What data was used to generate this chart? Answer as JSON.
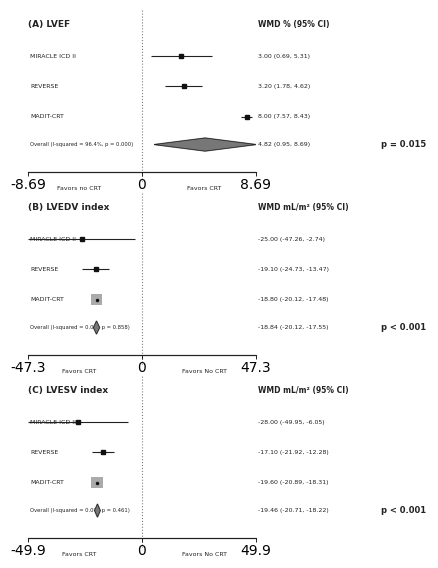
{
  "panels": [
    {
      "title": "(A) LVEF",
      "wmd_label": "WMD % (95% CI)",
      "studies": [
        {
          "name": "MIRACLE ICD II",
          "mean": 3.0,
          "ci_low": 0.69,
          "ci_high": 5.31,
          "label": "3.00 (0.69, 5.31)"
        },
        {
          "name": "REVERSE",
          "mean": 3.2,
          "ci_low": 1.78,
          "ci_high": 4.62,
          "label": "3.20 (1.78, 4.62)"
        },
        {
          "name": "MADIT-CRT",
          "mean": 8.0,
          "ci_low": 7.57,
          "ci_high": 8.43,
          "label": "8.00 (7.57, 8.43)"
        }
      ],
      "overall": {
        "mean": 4.82,
        "ci_low": 0.95,
        "ci_high": 8.69,
        "label": "4.82 (0.95, 8.69)",
        "text": "Overall (I-squared = 96.4%, p = 0.000)"
      },
      "pvalue": "p = 0.015",
      "xlim": [
        -8.69,
        8.69
      ],
      "xticks": [
        -8.69,
        0,
        8.69
      ],
      "xticklabels": [
        "-8.69",
        "0",
        "8.69"
      ],
      "favors_left": "Favors no CRT",
      "favors_right": "Favors CRT",
      "study_weights": [
        0.4,
        0.4,
        0.4
      ],
      "madit_big_box": false
    },
    {
      "title": "(B) LVEDV index",
      "wmd_label": "WMD mL/m² (95% CI)",
      "studies": [
        {
          "name": "MIRACLE ICD II",
          "mean": -25.0,
          "ci_low": -47.26,
          "ci_high": -2.74,
          "label": "-25.00 (-47.26, -2.74)"
        },
        {
          "name": "REVERSE",
          "mean": -19.1,
          "ci_low": -24.73,
          "ci_high": -13.47,
          "label": "-19.10 (-24.73, -13.47)"
        },
        {
          "name": "MADIT-CRT",
          "mean": -18.8,
          "ci_low": -20.12,
          "ci_high": -17.48,
          "label": "-18.80 (-20.12, -17.48)"
        }
      ],
      "overall": {
        "mean": -18.84,
        "ci_low": -20.12,
        "ci_high": -17.55,
        "label": "-18.84 (-20.12, -17.55)",
        "text": "Overall (I-squared = 0.0%, p = 0.858)"
      },
      "pvalue": "p < 0.001",
      "xlim": [
        -47.3,
        47.3
      ],
      "xticks": [
        -47.3,
        0,
        47.3
      ],
      "xticklabels": [
        "-47.3",
        "0",
        "47.3"
      ],
      "favors_left": "Favors CRT",
      "favors_right": "Favors No CRT",
      "study_weights": [
        0.3,
        0.4,
        1.8
      ],
      "madit_big_box": true
    },
    {
      "title": "(C) LVESV index",
      "wmd_label": "WMD mL/m² (95% CI)",
      "studies": [
        {
          "name": "MIRACLE ICD II",
          "mean": -28.0,
          "ci_low": -49.95,
          "ci_high": -6.05,
          "label": "-28.00 (-49.95, -6.05)"
        },
        {
          "name": "REVERSE",
          "mean": -17.1,
          "ci_low": -21.92,
          "ci_high": -12.28,
          "label": "-17.10 (-21.92, -12.28)"
        },
        {
          "name": "MADIT-CRT",
          "mean": -19.6,
          "ci_low": -20.89,
          "ci_high": -18.31,
          "label": "-19.60 (-20.89, -18.31)"
        }
      ],
      "overall": {
        "mean": -19.46,
        "ci_low": -20.71,
        "ci_high": -18.22,
        "label": "-19.46 (-20.71, -18.22)",
        "text": "Overall (I-squared = 0.0%, p = 0.461)"
      },
      "pvalue": "p < 0.001",
      "xlim": [
        -49.9,
        49.9
      ],
      "xticks": [
        -49.9,
        0,
        49.9
      ],
      "xticklabels": [
        "-49.9",
        "0",
        "49.9"
      ],
      "favors_left": "Favors CRT",
      "favors_right": "Favors No CRT",
      "study_weights": [
        0.3,
        0.4,
        1.8
      ],
      "madit_big_box": true
    }
  ],
  "bg_color": "#ffffff",
  "line_color": "#222222",
  "text_color": "#222222",
  "box_color": "#aaaaaa",
  "diamond_color": "#777777",
  "dot_color": "#111111"
}
